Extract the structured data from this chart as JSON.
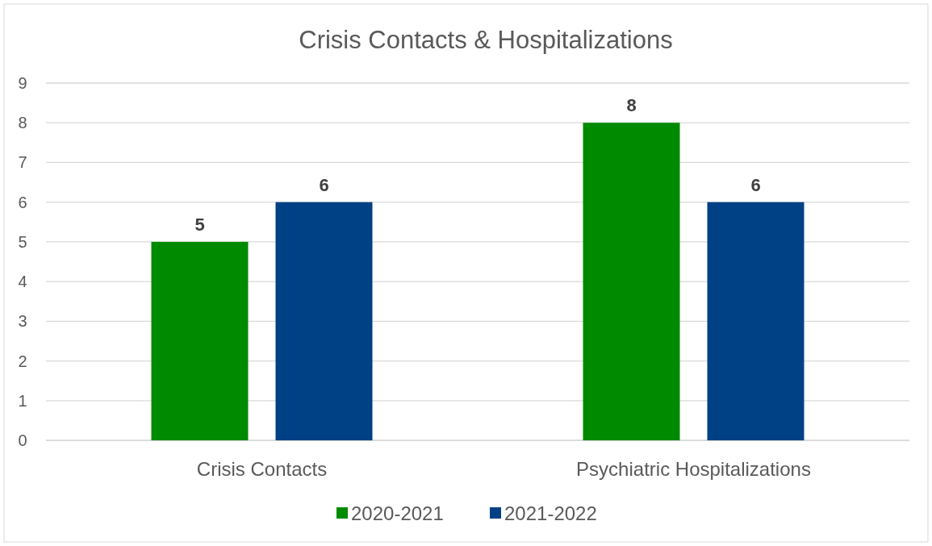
{
  "chart_data": {
    "type": "bar",
    "title": "Crisis Contacts & Hospitalizations",
    "categories": [
      "Crisis Contacts",
      "Psychiatric Hospitalizations"
    ],
    "series": [
      {
        "name": "2020-2021",
        "color": "#008a00",
        "values": [
          5,
          8
        ]
      },
      {
        "name": "2021-2022",
        "color": "#004185",
        "values": [
          6,
          6
        ]
      }
    ],
    "ylim": [
      0,
      9
    ],
    "yticks": [
      0,
      1,
      2,
      3,
      4,
      5,
      6,
      7,
      8,
      9
    ],
    "grid": "y",
    "legend": "bottom",
    "data_labels": true
  }
}
